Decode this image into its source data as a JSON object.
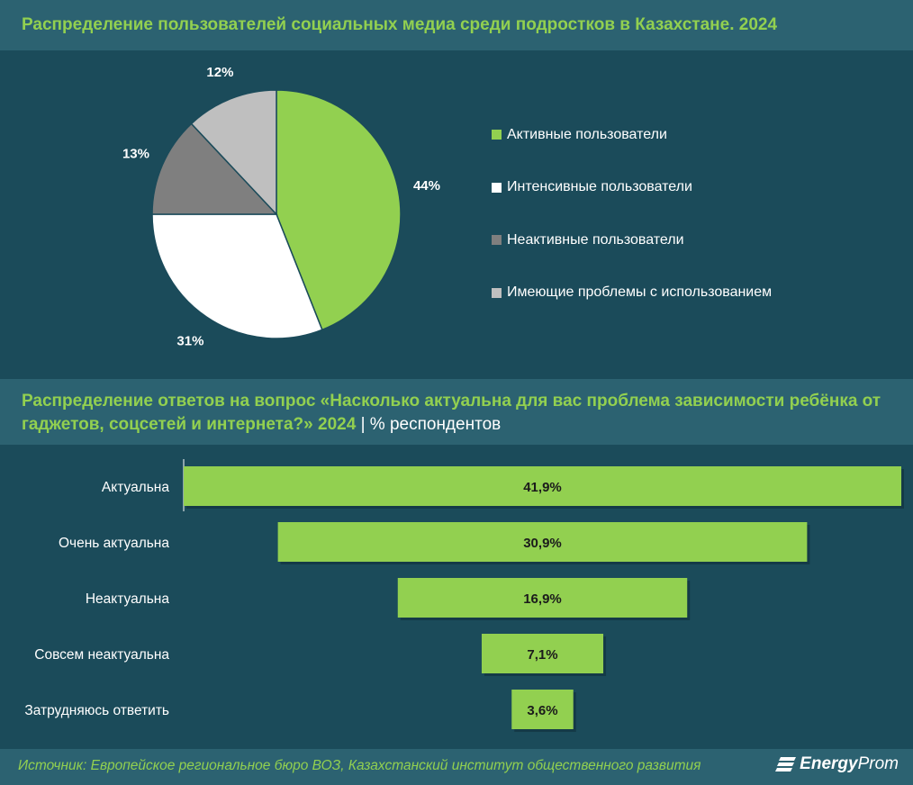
{
  "header1": {
    "title": "Распределение пользователей социальных медиа среди подростков в Казахстане. 2024"
  },
  "header2": {
    "title": "Распределение ответов на вопрос «Насколько актуальна для вас проблема зависимости ребёнка от гаджетов, соцсетей и интернета?» 2024",
    "separator": "|",
    "unit": "% респондентов"
  },
  "footer": {
    "source": "Источник: Европейское региональное бюро ВОЗ, Казахстанский институт общественного развития",
    "logo_bold": "Energy",
    "logo_light": "Prom"
  },
  "colors": {
    "background": "#1b4b5a",
    "band": "#2c6271",
    "green": "#92d050",
    "white": "#ffffff",
    "dark_gray": "#7f7f7f",
    "light_gray": "#bfbfbf"
  },
  "chart_data": [
    {
      "type": "pie",
      "title": "Распределение пользователей социальных медиа среди подростков в Казахстане. 2024",
      "slices": [
        {
          "label": "Активные пользователи",
          "value": 44,
          "display": "44%",
          "color": "#92d050"
        },
        {
          "label": "Интенсивные пользователи",
          "value": 31,
          "display": "31%",
          "color": "#ffffff"
        },
        {
          "label": "Неактивные пользователи",
          "value": 13,
          "display": "13%",
          "color": "#7f7f7f"
        },
        {
          "label": "Имеющие проблемы с использованием",
          "value": 12,
          "display": "12%",
          "color": "#bfbfbf"
        }
      ],
      "legend_position": "right"
    },
    {
      "type": "bar",
      "orientation": "horizontal-funnel",
      "title": "Распределение ответов на вопрос «Насколько актуальна для вас проблема зависимости ребёнка от гаджетов, соцсетей и интернета?» 2024",
      "unit": "% респондентов",
      "categories": [
        "Актуальна",
        "Очень актуальна",
        "Неактуальна",
        "Совсем неактуальна",
        "Затрудняюсь ответить"
      ],
      "values": [
        41.9,
        30.9,
        16.9,
        7.1,
        3.6
      ],
      "labels": [
        "41,9%",
        "30,9%",
        "16,9%",
        "7,1%",
        "3,6%"
      ],
      "color": "#92d050"
    }
  ]
}
